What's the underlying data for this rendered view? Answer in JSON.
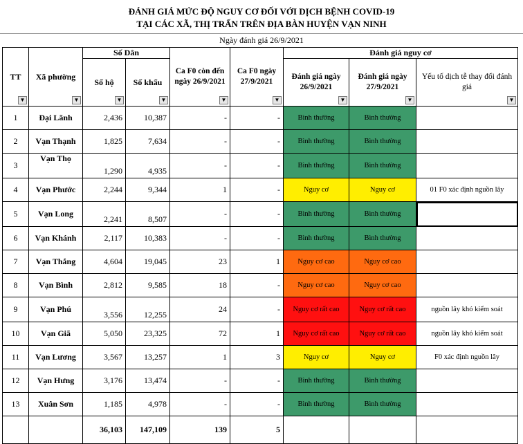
{
  "title_line1": "ĐÁNH GIÁ MỨC ĐỘ NGUY CƠ ĐỐI VỚI DỊCH BỆNH COVID-19",
  "title_line2": "TẠI CÁC XÃ, THỊ TRẤN TRÊN ĐỊA BÀN HUYỆN VẠN NINH",
  "date_label": "Ngày đánh giá 26/9/2021",
  "headers": {
    "tt": "TT",
    "xa_phuong": "Xã phường",
    "so_dan": "Số Dân",
    "so_ho": "Số hộ",
    "so_khau": "Số khẩu",
    "ca_f0_con": "Ca F0 còn đến ngày 26/9/2021",
    "ca_f0_ngay": "Ca F0 ngày 27/9/2021",
    "danh_gia_nguy_co": "Đánh giá nguy cơ",
    "danh_gia_26": "Đánh giá ngày 26/9/2021",
    "danh_gia_27": "Đánh giá ngày 27/9/2021",
    "yeu_to": "Yếu tố dịch tễ thay đổi đánh giá"
  },
  "filter_icon": "dropdown-arrow-icon",
  "colors": {
    "green": "#3d9a6a",
    "yellow": "#ffee00",
    "orange": "#ff6a10",
    "red": "#ff1010"
  },
  "rows": [
    {
      "tt": "1",
      "xa": "Đại Lãnh",
      "ho": "2,436",
      "khau": "10,387",
      "f0_con": "-",
      "f0_ngay": "-",
      "dg26": "Bình thường",
      "dg27": "Bình thường",
      "level": "green",
      "note": ""
    },
    {
      "tt": "2",
      "xa": "Vạn Thạnh",
      "ho": "1,825",
      "khau": "7,634",
      "f0_con": "-",
      "f0_ngay": "-",
      "dg26": "Bình thường",
      "dg27": "Bình thường",
      "level": "green",
      "note": ""
    },
    {
      "tt": "3",
      "xa": "Vạn Thọ",
      "ho": "1,290",
      "khau": "4,935",
      "f0_con": "-",
      "f0_ngay": "-",
      "dg26": "Bình thường",
      "dg27": "Bình thường",
      "level": "green",
      "note": ""
    },
    {
      "tt": "4",
      "xa": "Vạn Phước",
      "ho": "2,244",
      "khau": "9,344",
      "f0_con": "1",
      "f0_ngay": "-",
      "dg26": "Nguy cơ",
      "dg27": "Nguy cơ",
      "level": "yellow",
      "note": "01 F0 xác định nguồn lây"
    },
    {
      "tt": "5",
      "xa": "Vạn Long",
      "ho": "2,241",
      "khau": "8,507",
      "f0_con": "-",
      "f0_ngay": "-",
      "dg26": "Bình thường",
      "dg27": "Bình thường",
      "level": "green",
      "note": ""
    },
    {
      "tt": "6",
      "xa": "Vạn Khánh",
      "ho": "2,117",
      "khau": "10,383",
      "f0_con": "-",
      "f0_ngay": "-",
      "dg26": "Bình thường",
      "dg27": "Bình thường",
      "level": "green",
      "note": ""
    },
    {
      "tt": "7",
      "xa": "Vạn Thắng",
      "ho": "4,604",
      "khau": "19,045",
      "f0_con": "23",
      "f0_ngay": "1",
      "dg26": "Nguy cơ cao",
      "dg27": "Nguy cơ cao",
      "level": "orange",
      "note": ""
    },
    {
      "tt": "8",
      "xa": "Vạn Bình",
      "ho": "2,812",
      "khau": "9,585",
      "f0_con": "18",
      "f0_ngay": "-",
      "dg26": "Nguy cơ cao",
      "dg27": "Nguy cơ cao",
      "level": "orange",
      "note": ""
    },
    {
      "tt": "9",
      "xa": "Vạn Phú",
      "ho": "3,556",
      "khau": "12,255",
      "f0_con": "24",
      "f0_ngay": "-",
      "dg26": "Nguy cơ rất cao",
      "dg27": "Nguy cơ rất cao",
      "level": "red",
      "note": "nguồn lây khó kiểm soát"
    },
    {
      "tt": "10",
      "xa": "Vạn Giã",
      "ho": "5,050",
      "khau": "23,325",
      "f0_con": "72",
      "f0_ngay": "1",
      "dg26": "Nguy cơ rất cao",
      "dg27": "Nguy cơ rất cao",
      "level": "red",
      "note": "nguồn lây khó kiểm soát"
    },
    {
      "tt": "11",
      "xa": "Vạn Lương",
      "ho": "3,567",
      "khau": "13,257",
      "f0_con": "1",
      "f0_ngay": "3",
      "dg26": "Nguy cơ",
      "dg27": "Nguy cơ",
      "level": "yellow",
      "note": "F0 xác định nguồn lây"
    },
    {
      "tt": "12",
      "xa": "Vạn Hưng",
      "ho": "3,176",
      "khau": "13,474",
      "f0_con": "-",
      "f0_ngay": "-",
      "dg26": "Bình thường",
      "dg27": "Bình thường",
      "level": "green",
      "note": ""
    },
    {
      "tt": "13",
      "xa": "Xuân Sơn",
      "ho": "1,185",
      "khau": "4,978",
      "f0_con": "-",
      "f0_ngay": "-",
      "dg26": "Bình thường",
      "dg27": "Bình thường",
      "level": "green",
      "note": ""
    }
  ],
  "totals": {
    "ho": "36,103",
    "khau": "147,109",
    "f0_con": "139",
    "f0_ngay": "5"
  }
}
